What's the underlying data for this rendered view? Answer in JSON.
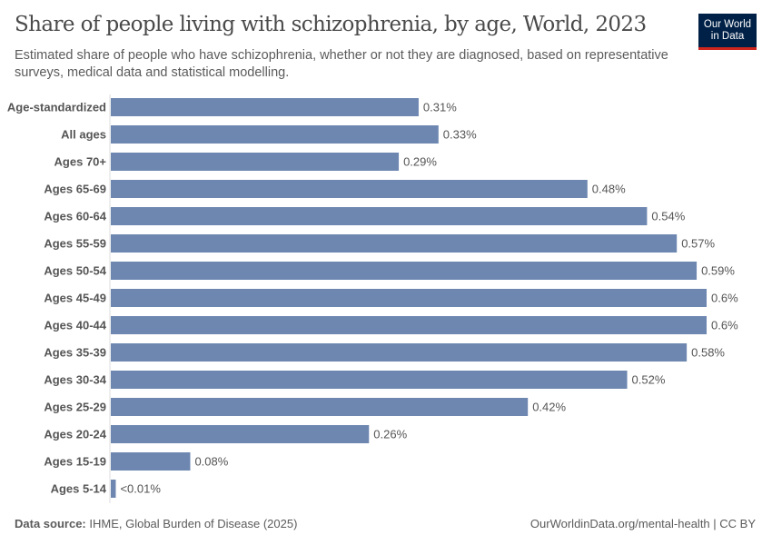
{
  "header": {
    "title": "Share of people living with schizophrenia, by age, World, 2023",
    "subtitle": "Estimated share of people who have schizophrenia, whether or not they are diagnosed, based on representative surveys, medical data and statistical modelling.",
    "logo_text": "Our World in Data"
  },
  "footer": {
    "source_label": "Data source:",
    "source_text": "IHME, Global Burden of Disease (2025)",
    "credit": "OurWorldinData.org/mental-health | CC BY"
  },
  "colors": {
    "bar": "#6d87b1",
    "logo_bg": "#002147",
    "logo_accent": "#ce261e"
  },
  "chart_data": {
    "type": "bar",
    "orientation": "horizontal",
    "title": "Share of people living with schizophrenia, by age, World, 2023",
    "unit": "%",
    "xlim": [
      0,
      0.6
    ],
    "grid": false,
    "categories": [
      "Age-standardized",
      "All ages",
      "Ages 70+",
      "Ages 65-69",
      "Ages 60-64",
      "Ages 55-59",
      "Ages 50-54",
      "Ages 45-49",
      "Ages 40-44",
      "Ages 35-39",
      "Ages 30-34",
      "Ages 25-29",
      "Ages 20-24",
      "Ages 15-19",
      "Ages 5-14"
    ],
    "values": [
      0.31,
      0.33,
      0.29,
      0.48,
      0.54,
      0.57,
      0.59,
      0.6,
      0.6,
      0.58,
      0.52,
      0.42,
      0.26,
      0.08,
      0.005
    ],
    "labels": [
      "0.31%",
      "0.33%",
      "0.29%",
      "0.48%",
      "0.54%",
      "0.57%",
      "0.59%",
      "0.6%",
      "0.6%",
      "0.58%",
      "0.52%",
      "0.42%",
      "0.26%",
      "0.08%",
      "<0.01%"
    ]
  }
}
